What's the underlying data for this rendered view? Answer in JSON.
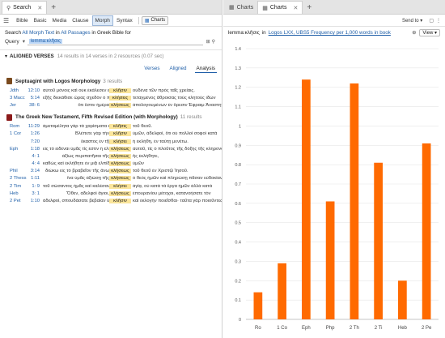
{
  "left": {
    "tabs": [
      {
        "label": "Search",
        "icon": "search-icon",
        "active": true
      }
    ],
    "toolbar": {
      "items": [
        {
          "label": "Bible",
          "active": false
        },
        {
          "label": "Basic",
          "active": false
        },
        {
          "label": "Media",
          "active": false
        },
        {
          "label": "Clause",
          "active": false
        },
        {
          "label": "Morph",
          "active": true
        },
        {
          "label": "Syntax",
          "active": false
        }
      ],
      "charts_label": "Charts"
    },
    "searchline": {
      "prefix": "Search",
      "scope1": "All Morph Text",
      "mid": "in",
      "scope2": "All Passages",
      "in_label": "in Greek Bible for"
    },
    "query": {
      "label": "Query",
      "value": "lemma:κλῆσις"
    },
    "results": {
      "title": "ALIGNED VERSES",
      "summary": "14 results in 14 verses in 2 resources (0.07 sec)"
    },
    "views": [
      "Verses",
      "Aligned",
      "Analysis"
    ],
    "groups": [
      {
        "title": "Septuagint with Logos Morphology",
        "count": "3 results",
        "color": "#7a4a1e",
        "rows": [
          {
            "book": "Jdth",
            "ref": "12:10",
            "left": "αὐτοῦ μόνοις καὶ οὐκ ἐκάλεσεν εἰς τὴν",
            "key": "κλῆσιν",
            "right": "οὐδένα τῶν πρὸς ταῖς χρείαις."
          },
          {
            "book": "3 Macc",
            "ref": "5:14",
            "left": "ἐξῆς διεκάθισε ὥρας σχεδὸν ὁ πρὸς τάς",
            "key": "κλήσεις",
            "right": "τεταγμένος ἄθροισας τοὺς κλητοὺς ἰδὼν"
          },
          {
            "book": "Jer",
            "ref": "38: 6",
            "left": "ὅτι ἔστιν ἡμέρα",
            "key": "κλήσεως",
            "right": "ἀπολογουμένων ἐν ὄρεσιν Ἐφραιμ Ἀναστητε"
          }
        ]
      },
      {
        "title": "The Greek New Testament, Fifth Revised Edition (with Morphology)",
        "count": "11 results",
        "color": "#8b1a1a",
        "rows": [
          {
            "book": "Rom",
            "ref": "11:29",
            "left": "ἀμεταμέλητα γὰρ τὰ χαρίσματα καὶ ἡ",
            "key": "κλῆσις",
            "right": "τοῦ θεοῦ."
          },
          {
            "book": "1 Cor",
            "ref": "1:26",
            "left": "Βλέπετε γὰρ τὴν",
            "key": "κλῆσιν",
            "right": "ὑμῶν, ἀδελφοί, ὅτι οὐ πολλοὶ σοφοὶ κατὰ"
          },
          {
            "book": "",
            "ref": "7:20",
            "left": "ἕκαστος ἐν τῇ",
            "key": "κλήσει",
            "right": "ἡ ἐκλήθη, ἐν ταύτῃ μενέτω."
          },
          {
            "book": "Eph",
            "ref": "1:18",
            "left": "εἰς τὸ εἰδέναι ὑμᾶς τίς ἐστιν ἡ ἐλπὶς τῆς",
            "key": "κλήσεως",
            "right": "αὐτοῦ, τίς ὁ πλοῦτος τῆς δόξης τῆς κληρονομίας"
          },
          {
            "book": "",
            "ref": "4: 1",
            "left": "ἀξίως περιπατῆσαι τῆς",
            "key": "κλήσεως",
            "right": "ἧς ἐκλήθητε,"
          },
          {
            "book": "",
            "ref": "4: 4",
            "left": "καθὼς καὶ ἐκλήθητε ἐν μιᾷ ἐλπίδι τῆς",
            "key": "κλήσεως",
            "right": "ὑμῶν"
          },
          {
            "book": "Phil",
            "ref": "3:14",
            "left": "διώκω εἰς τὸ βραβεῖον τῆς ἄνω",
            "key": "κλήσεως",
            "right": "τοῦ θεοῦ ἐν Χριστῷ Ἰησοῦ."
          },
          {
            "book": "2 Thess",
            "ref": "1:11",
            "left": "ἵνα ὑμᾶς ἀξιώσῃ τῆς",
            "key": "κλήσεως",
            "right": "ὁ θεὸς ἡμῶν καὶ πληρώσῃ πᾶσαν εὐδοκίαν"
          },
          {
            "book": "2 Tim",
            "ref": "1: 9",
            "left": "τοῦ σώσαντος ἡμᾶς καὶ καλέσαντος",
            "key": "κλήσει",
            "right": "ἁγίᾳ, οὐ κατὰ τὰ ἔργα ἡμῶν ἀλλὰ κατὰ"
          },
          {
            "book": "Heb",
            "ref": "3: 1",
            "left": "Ὅθεν, ἀδελφοὶ ἅγιοι,",
            "key": "κλήσεως",
            "right": "ἐπουρανίου μέτοχοι, κατανοήσατε τὸν"
          },
          {
            "book": "2 Pet",
            "ref": "1:10",
            "left": "ἀδελφοί, σπουδάσατε βεβαίαν ὑμῶν τὴν",
            "key": "κλῆσιν",
            "right": "καὶ ἐκλογὴν ποιεῖσθαι· ταῦτα γὰρ ποιοῦντες"
          }
        ]
      }
    ]
  },
  "right": {
    "tabs": [
      {
        "label": "Charts",
        "icon": "chart-icon",
        "active": false
      },
      {
        "label": "Charts",
        "icon": "chart-icon",
        "active": true
      }
    ],
    "toolbar": {
      "sendto": "Send to"
    },
    "info": {
      "lemma": "lemma:κλῆσις",
      "in": "in",
      "link": "Logos LXX, UBS5 Frequency per 1,000 words in book",
      "view": "View"
    }
  },
  "chart_data": {
    "type": "bar",
    "categories": [
      "Ro",
      "1 Co",
      "Eph",
      "Php",
      "2 Th",
      "2 Ti",
      "Heb",
      "2 Pe"
    ],
    "values": [
      0.14,
      0.29,
      1.24,
      0.61,
      1.22,
      0.81,
      0.2,
      0.91
    ],
    "ylim": [
      0,
      1.4
    ],
    "yticks": [
      "0",
      "0.1",
      "0.2",
      "0.3",
      "0.4",
      "0.5",
      "0.6",
      "0.7",
      "0.8",
      "0.9",
      "1",
      "1.1",
      "1.2",
      "1.3",
      "1.4"
    ],
    "bar_color": "#ff6a00",
    "grid": true,
    "title": "",
    "xlabel": "",
    "ylabel": ""
  }
}
